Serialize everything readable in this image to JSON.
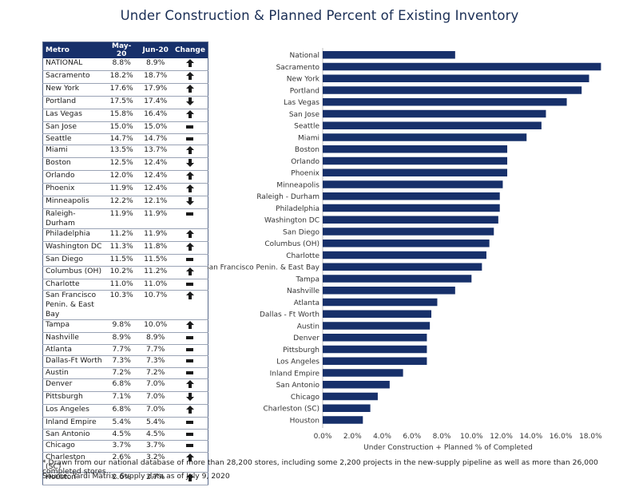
{
  "title": "Under Construction & Planned Percent of Existing Inventory",
  "table": {
    "headers": [
      "Metro",
      "May-20",
      "Jun-20",
      "Change"
    ],
    "rows": [
      {
        "metro": "NATIONAL",
        "may": "8.8%",
        "jun": "8.9%",
        "change": "up"
      },
      {
        "metro": "Sacramento",
        "may": "18.2%",
        "jun": "18.7%",
        "change": "up"
      },
      {
        "metro": "New York",
        "may": "17.6%",
        "jun": "17.9%",
        "change": "up"
      },
      {
        "metro": "Portland",
        "may": "17.5%",
        "jun": "17.4%",
        "change": "down"
      },
      {
        "metro": "Las Vegas",
        "may": "15.8%",
        "jun": "16.4%",
        "change": "up"
      },
      {
        "metro": "San Jose",
        "may": "15.0%",
        "jun": "15.0%",
        "change": "flat"
      },
      {
        "metro": "Seattle",
        "may": "14.7%",
        "jun": "14.7%",
        "change": "flat"
      },
      {
        "metro": "Miami",
        "may": "13.5%",
        "jun": "13.7%",
        "change": "up"
      },
      {
        "metro": "Boston",
        "may": "12.5%",
        "jun": "12.4%",
        "change": "down"
      },
      {
        "metro": "Orlando",
        "may": "12.0%",
        "jun": "12.4%",
        "change": "up"
      },
      {
        "metro": "Phoenix",
        "may": "11.9%",
        "jun": "12.4%",
        "change": "up"
      },
      {
        "metro": "Minneapolis",
        "may": "12.2%",
        "jun": "12.1%",
        "change": "down"
      },
      {
        "metro": "Raleigh-Durham",
        "may": "11.9%",
        "jun": "11.9%",
        "change": "flat"
      },
      {
        "metro": "Philadelphia",
        "may": "11.2%",
        "jun": "11.9%",
        "change": "up"
      },
      {
        "metro": "Washington DC",
        "may": "11.3%",
        "jun": "11.8%",
        "change": "up"
      },
      {
        "metro": "San Diego",
        "may": "11.5%",
        "jun": "11.5%",
        "change": "flat"
      },
      {
        "metro": "Columbus (OH)",
        "may": "10.2%",
        "jun": "11.2%",
        "change": "up"
      },
      {
        "metro": "Charlotte",
        "may": "11.0%",
        "jun": "11.0%",
        "change": "flat"
      },
      {
        "metro": "San Francisco Penin. & East Bay",
        "may": "10.3%",
        "jun": "10.7%",
        "change": "up"
      },
      {
        "metro": "Tampa",
        "may": "9.8%",
        "jun": "10.0%",
        "change": "up"
      },
      {
        "metro": "Nashville",
        "may": "8.9%",
        "jun": "8.9%",
        "change": "flat"
      },
      {
        "metro": "Atlanta",
        "may": "7.7%",
        "jun": "7.7%",
        "change": "flat"
      },
      {
        "metro": "Dallas-Ft Worth",
        "may": "7.3%",
        "jun": "7.3%",
        "change": "flat"
      },
      {
        "metro": "Austin",
        "may": "7.2%",
        "jun": "7.2%",
        "change": "flat"
      },
      {
        "metro": "Denver",
        "may": "6.8%",
        "jun": "7.0%",
        "change": "up"
      },
      {
        "metro": "Pittsburgh",
        "may": "7.1%",
        "jun": "7.0%",
        "change": "down"
      },
      {
        "metro": "Los Angeles",
        "may": "6.8%",
        "jun": "7.0%",
        "change": "up"
      },
      {
        "metro": "Inland Empire",
        "may": "5.4%",
        "jun": "5.4%",
        "change": "flat"
      },
      {
        "metro": "San Antonio",
        "may": "4.5%",
        "jun": "4.5%",
        "change": "flat"
      },
      {
        "metro": "Chicago",
        "may": "3.7%",
        "jun": "3.7%",
        "change": "flat"
      },
      {
        "metro": "Charleston (SC)",
        "may": "2.6%",
        "jun": "3.2%",
        "change": "up"
      },
      {
        "metro": "Houston",
        "may": "2.6%",
        "jun": "2.7%",
        "change": "up"
      }
    ]
  },
  "chart_data": {
    "type": "bar",
    "orientation": "horizontal",
    "categories": [
      "National",
      "Sacramento",
      "New York",
      "Portland",
      "Las Vegas",
      "San Jose",
      "Seattle",
      "Miami",
      "Boston",
      "Orlando",
      "Phoenix",
      "Minneapolis",
      "Raleigh - Durham",
      "Philadelphia",
      "Washington DC",
      "San Diego",
      "Columbus (OH)",
      "Charlotte",
      "San Francisco Penin. & East Bay",
      "Tampa",
      "Nashville",
      "Atlanta",
      "Dallas - Ft Worth",
      "Austin",
      "Denver",
      "Pittsburgh",
      "Los Angeles",
      "Inland Empire",
      "San Antonio",
      "Chicago",
      "Charleston (SC)",
      "Houston"
    ],
    "values": [
      8.9,
      18.7,
      17.9,
      17.4,
      16.4,
      15.0,
      14.7,
      13.7,
      12.4,
      12.4,
      12.4,
      12.1,
      11.9,
      11.9,
      11.8,
      11.5,
      11.2,
      11.0,
      10.7,
      10.0,
      8.9,
      7.7,
      7.3,
      7.2,
      7.0,
      7.0,
      7.0,
      5.4,
      4.5,
      3.7,
      3.2,
      2.7
    ],
    "xlabel": "Under Construction + Planned % of Completed",
    "ylabel": "",
    "xlim": [
      0,
      19
    ],
    "xticks": [
      0,
      2,
      4,
      6,
      8,
      10,
      12,
      14,
      16,
      18
    ],
    "xtick_labels": [
      "0.0%",
      "2.0%",
      "4.0%",
      "6.0%",
      "8.0%",
      "10.0%",
      "12.0%",
      "14.0%",
      "16.0%",
      "18.0%"
    ],
    "grid": false,
    "bar_color": "#17306a"
  },
  "footnotes": {
    "note": "* Drawn from our national database of more than 28,200 stores, including some 2,200 projects in the new-supply pipeline as well as more than 26,000 completed stores.",
    "source": "Source: Yardi Matrix. Supply data as of July 9, 2020"
  }
}
